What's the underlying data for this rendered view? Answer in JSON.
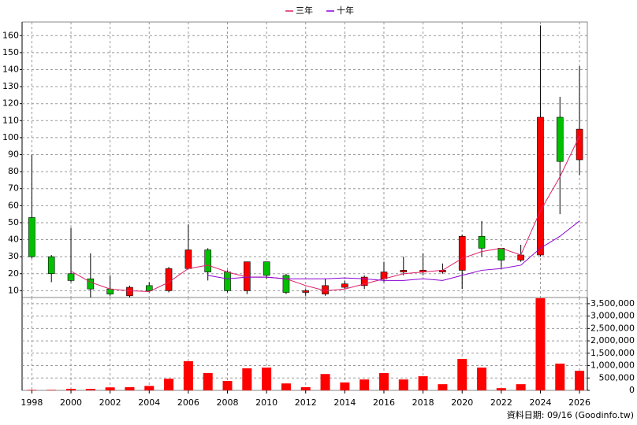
{
  "chart_data": [
    {
      "type": "candlestick",
      "x": [
        1998,
        1999,
        2000,
        2001,
        2002,
        2003,
        2004,
        2005,
        2006,
        2007,
        2008,
        2009,
        2010,
        2011,
        2012,
        2013,
        2014,
        2015,
        2016,
        2017,
        2018,
        2019,
        2020,
        2021,
        2022,
        2023,
        2024,
        2025,
        2026
      ],
      "open": [
        53,
        30,
        20,
        17,
        11,
        7,
        13,
        10,
        23,
        34,
        21,
        10,
        27,
        19,
        9,
        8,
        12,
        13,
        17,
        21,
        21,
        21,
        22,
        42,
        35,
        28,
        31,
        112,
        87
      ],
      "high": [
        90,
        31,
        47,
        32,
        19,
        13,
        15,
        24,
        49,
        35,
        22,
        27,
        27,
        20,
        11,
        17,
        16,
        19,
        27,
        30,
        32,
        26,
        43,
        51,
        35,
        37,
        166,
        124,
        142
      ],
      "low": [
        29,
        15,
        15,
        6,
        7,
        6,
        9,
        9,
        23,
        16,
        9,
        8,
        17,
        8,
        7,
        7,
        11,
        11,
        15,
        19,
        19,
        20,
        11,
        30,
        23,
        27,
        30,
        55,
        78
      ],
      "close": [
        30,
        20,
        16,
        11,
        8,
        12,
        10,
        23,
        34,
        21,
        10,
        27,
        19,
        9,
        10,
        13,
        14,
        18,
        21,
        22,
        22,
        22,
        42,
        35,
        28,
        31,
        112,
        86,
        105
      ],
      "up_color": "#ff0000",
      "down_color": "#00c000",
      "series": [
        {
          "name": "三年",
          "color": "#e0206a",
          "values": [
            null,
            null,
            21.5,
            15,
            11,
            10,
            9.5,
            15,
            23,
            25,
            21,
            18,
            18,
            17,
            13,
            10,
            11,
            14,
            17,
            20,
            21,
            22,
            29,
            33,
            35,
            31,
            57,
            77,
            101
          ]
        },
        {
          "name": "十年",
          "color": "#8a00d4",
          "values": [
            null,
            null,
            null,
            null,
            null,
            null,
            null,
            null,
            null,
            19,
            17,
            18,
            18,
            17,
            17,
            17,
            17.5,
            17,
            16,
            16,
            17,
            16,
            19,
            22,
            23,
            25,
            35,
            42,
            51
          ]
        }
      ],
      "xlim": [
        1997.5,
        2026.4
      ],
      "ylim": [
        6,
        168
      ],
      "yticks": [
        10,
        20,
        30,
        40,
        50,
        60,
        70,
        80,
        90,
        100,
        110,
        120,
        130,
        140,
        150,
        160
      ],
      "grid": true,
      "legend": "top"
    },
    {
      "type": "bar",
      "x": [
        1998,
        1999,
        2000,
        2001,
        2002,
        2003,
        2004,
        2005,
        2006,
        2007,
        2008,
        2009,
        2010,
        2011,
        2012,
        2013,
        2014,
        2015,
        2016,
        2017,
        2018,
        2019,
        2020,
        2021,
        2022,
        2023,
        2024,
        2025,
        2026
      ],
      "values": [
        20000,
        20000,
        60000,
        60000,
        120000,
        130000,
        180000,
        470000,
        1180000,
        700000,
        380000,
        890000,
        920000,
        280000,
        130000,
        660000,
        320000,
        440000,
        700000,
        440000,
        570000,
        250000,
        1270000,
        920000,
        90000,
        250000,
        3720000,
        1080000,
        790000
      ],
      "color": "#ff0000",
      "xlim": [
        1997.5,
        2026.4
      ],
      "ylim": [
        0,
        3750000
      ],
      "xticks": [
        1998,
        2000,
        2002,
        2004,
        2006,
        2008,
        2010,
        2012,
        2014,
        2016,
        2018,
        2020,
        2022,
        2024,
        2026
      ],
      "yticks": [
        0,
        {
          "value": 500000,
          "label": "500,000"
        },
        {
          "value": 1000000,
          "label": "1,000,000"
        },
        {
          "value": 1500000,
          "label": "1,500,000"
        },
        {
          "value": 2000000,
          "label": "2,000,000"
        },
        {
          "value": 2500000,
          "label": "2,500,000"
        },
        {
          "value": 3000000,
          "label": "3,000,000"
        },
        {
          "value": 3500000,
          "label": "3,500,000"
        }
      ],
      "grid": true,
      "y_axis_side": "right"
    }
  ],
  "footer": "資料日期: 09/16  (Goodinfo.tw)"
}
